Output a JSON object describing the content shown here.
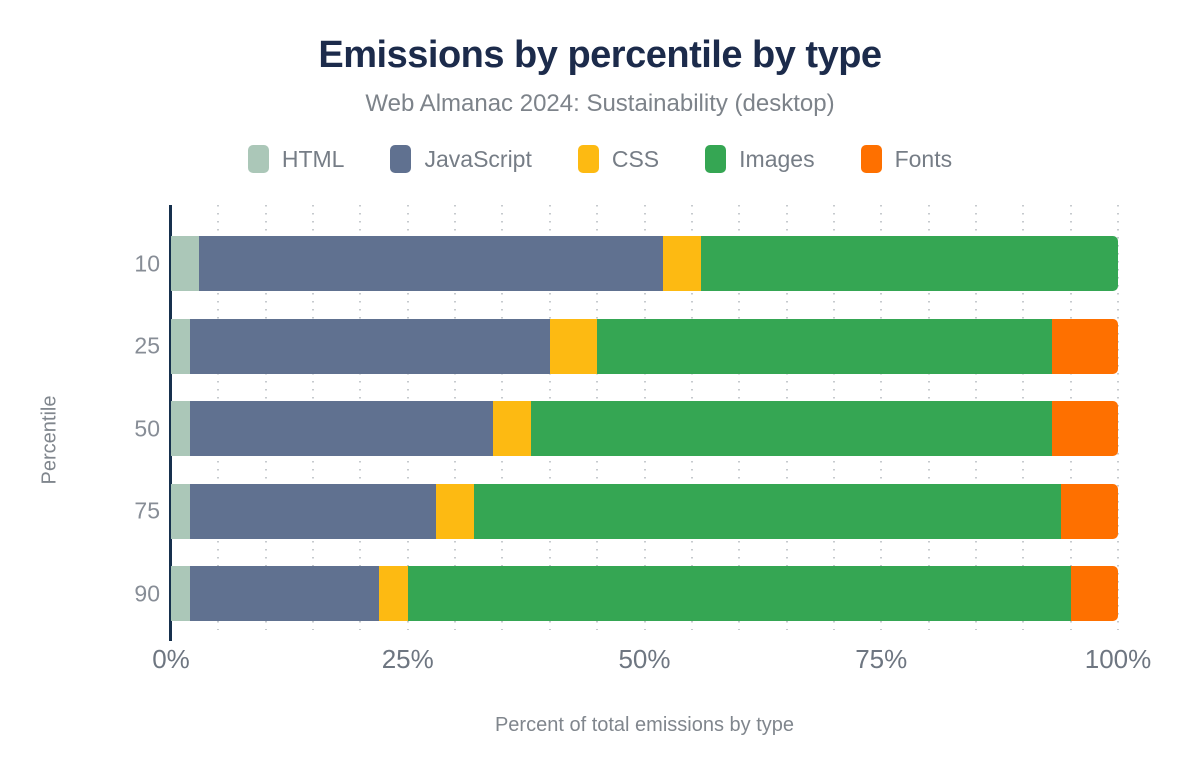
{
  "header": {
    "title": "Emissions by percentile by type",
    "subtitle": "Web Almanac 2024: Sustainability (desktop)"
  },
  "axes": {
    "y_label": "Percentile",
    "x_label": "Percent of total emissions by type"
  },
  "chart_data": {
    "type": "bar",
    "orientation": "horizontal",
    "stacked": true,
    "title": "Emissions by percentile by type",
    "subtitle": "Web Almanac 2024: Sustainability (desktop)",
    "xlabel": "Percent of total emissions by type",
    "ylabel": "Percentile",
    "units": "%",
    "xlim": [
      0,
      100
    ],
    "grid": "dotted vertical lines every 5%",
    "legend_position": "top",
    "categories": [
      "10",
      "25",
      "50",
      "75",
      "90"
    ],
    "x_ticks": [
      {
        "label": "0%",
        "value": 0
      },
      {
        "label": "25%",
        "value": 25
      },
      {
        "label": "50%",
        "value": 50
      },
      {
        "label": "75%",
        "value": 75
      },
      {
        "label": "100%",
        "value": 100
      }
    ],
    "series": [
      {
        "name": "HTML",
        "color": "#abc7b8",
        "values": [
          3,
          2,
          2,
          2,
          2
        ]
      },
      {
        "name": "JavaScript",
        "color": "#607190",
        "values": [
          49,
          38,
          32,
          26,
          20
        ]
      },
      {
        "name": "CSS",
        "color": "#fdba12",
        "values": [
          4,
          5,
          4,
          4,
          3
        ]
      },
      {
        "name": "Images",
        "color": "#35a653",
        "values": [
          44,
          48,
          55,
          62,
          70
        ]
      },
      {
        "name": "Fonts",
        "color": "#fe7000",
        "values": [
          0,
          7,
          7,
          6,
          5
        ]
      }
    ]
  },
  "colors": {
    "title": "#1c2b4b",
    "subtitle": "#7d838a",
    "axis_line": "#16304d",
    "y_tick_label": "#878d96",
    "x_tick_label": "#6e7681",
    "axis_title": "#80868d",
    "gridline": "#c6cace",
    "background": "#ffffff"
  }
}
